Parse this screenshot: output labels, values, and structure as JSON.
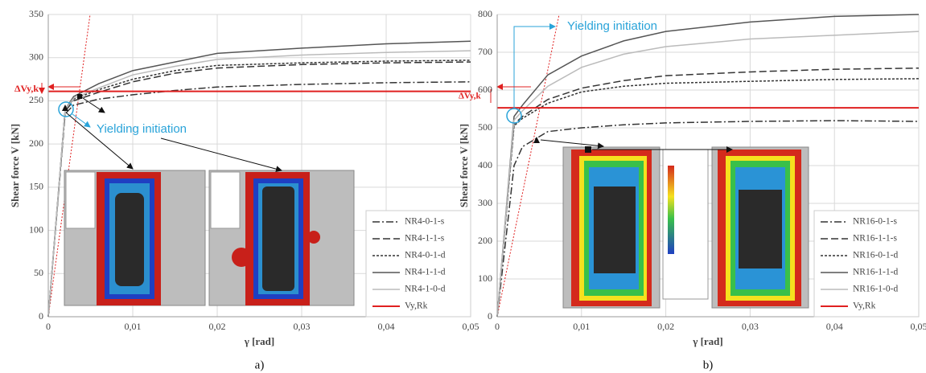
{
  "chart_data": [
    {
      "type": "line",
      "caption": "a)",
      "x_label": "γ [rad]",
      "y_label": "Shear force V [kN]",
      "annotations": [
        "ΔVy,k",
        "Yielding initiation"
      ],
      "x": [
        0,
        0.002,
        0.003,
        0.006,
        0.01,
        0.015,
        0.02,
        0.03,
        0.04,
        0.05
      ],
      "xlim": [
        0,
        0.05
      ],
      "ylim": [
        0,
        350
      ],
      "xticks": [
        0,
        {
          "value": 0.01,
          "label": "0,01"
        },
        {
          "value": 0.02,
          "label": "0,02"
        },
        {
          "value": 0.03,
          "label": "0,03"
        },
        {
          "value": 0.04,
          "label": "0,04"
        },
        {
          "value": 0.05,
          "label": "0,05"
        }
      ],
      "yticks": [
        0,
        50,
        100,
        150,
        200,
        250,
        300,
        350
      ],
      "grid": true,
      "legend": "lower right",
      "series": [
        {
          "name": "NR4-0-1-s",
          "color": "#333333",
          "style": "dashdot",
          "values": [
            0,
            235,
            245,
            252,
            257,
            262,
            266,
            269,
            271,
            272
          ]
        },
        {
          "name": "NR4-1-1-s",
          "color": "#333333",
          "style": "dashed",
          "values": [
            0,
            238,
            250,
            260,
            272,
            282,
            288,
            292,
            294,
            295
          ]
        },
        {
          "name": "NR4-0-1-d",
          "color": "#333333",
          "style": "dotted",
          "values": [
            0,
            240,
            252,
            263,
            275,
            285,
            291,
            294,
            296,
            297
          ]
        },
        {
          "name": "NR4-1-1-d",
          "color": "#555555",
          "style": "solid",
          "values": [
            0,
            240,
            255,
            270,
            285,
            295,
            305,
            311,
            316,
            319
          ]
        },
        {
          "name": "NR4-1-0-d",
          "color": "#bbbbbb",
          "style": "solid",
          "values": [
            0,
            240,
            253,
            265,
            280,
            290,
            298,
            303,
            306,
            308
          ]
        },
        {
          "name": "Vy,Rk",
          "color": "#e02020",
          "style": "solid",
          "values": [
            261,
            261,
            261,
            261,
            261,
            261,
            261,
            261,
            261,
            261
          ]
        }
      ]
    },
    {
      "type": "line",
      "caption": "b)",
      "x_label": "γ [rad]",
      "y_label": "Shear force V [kN]",
      "annotations": [
        "ΔVy,k",
        "Yielding initiation"
      ],
      "x": [
        0,
        0.002,
        0.003,
        0.006,
        0.01,
        0.015,
        0.02,
        0.03,
        0.04,
        0.05
      ],
      "xlim": [
        0,
        0.05
      ],
      "ylim": [
        0,
        800
      ],
      "xticks": [
        0,
        {
          "value": 0.01,
          "label": "0,01"
        },
        {
          "value": 0.02,
          "label": "0,02"
        },
        {
          "value": 0.03,
          "label": "0,03"
        },
        {
          "value": 0.04,
          "label": "0,04"
        },
        {
          "value": 0.05,
          "label": "0,05"
        }
      ],
      "yticks": [
        0,
        100,
        200,
        300,
        400,
        500,
        600,
        700,
        800
      ],
      "grid": true,
      "legend": "lower right",
      "series": [
        {
          "name": "NR16-0-1-s",
          "color": "#333333",
          "style": "dashdot",
          "values": [
            0,
            400,
            450,
            490,
            500,
            508,
            513,
            517,
            519,
            517
          ]
        },
        {
          "name": "NR16-1-1-s",
          "color": "#333333",
          "style": "dashed",
          "values": [
            0,
            510,
            530,
            575,
            605,
            625,
            638,
            648,
            655,
            658
          ]
        },
        {
          "name": "NR16-0-1-d",
          "color": "#333333",
          "style": "dotted",
          "values": [
            0,
            505,
            525,
            565,
            595,
            610,
            618,
            623,
            628,
            630
          ]
        },
        {
          "name": "NR16-1-1-d",
          "color": "#555555",
          "style": "solid",
          "values": [
            0,
            530,
            560,
            640,
            690,
            730,
            755,
            780,
            795,
            800
          ]
        },
        {
          "name": "NR16-1-0-d",
          "color": "#bbbbbb",
          "style": "solid",
          "values": [
            0,
            520,
            545,
            610,
            660,
            695,
            715,
            735,
            745,
            755
          ]
        },
        {
          "name": "Vy,Rk",
          "color": "#e02020",
          "style": "solid",
          "values": [
            553,
            553,
            553,
            553,
            553,
            553,
            553,
            553,
            553,
            553
          ]
        }
      ]
    }
  ]
}
